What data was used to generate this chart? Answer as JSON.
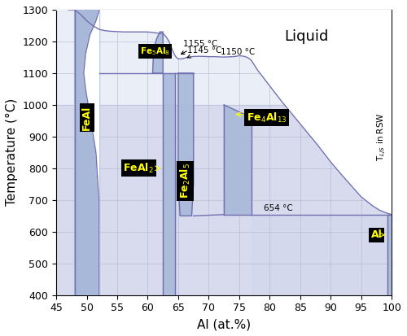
{
  "xlim": [
    45,
    100
  ],
  "ylim": [
    400,
    1300
  ],
  "xlabel": "Al (at.%)",
  "ylabel": "Temperature (°C)",
  "xticks": [
    45,
    50,
    55,
    60,
    65,
    70,
    75,
    80,
    85,
    90,
    95,
    100
  ],
  "yticks": [
    400,
    500,
    600,
    700,
    800,
    900,
    1000,
    1100,
    1200,
    1300
  ],
  "line_color": "#7070b0",
  "label_bg": "#000000",
  "label_fg": "#ffff00",
  "phase_fill": "#a8b8d8",
  "bg_light_blue": "#dde4f0",
  "rsw_shade": "#d0d4e8",
  "white": "#ffffff",
  "grid_color": "#b0b8cc"
}
